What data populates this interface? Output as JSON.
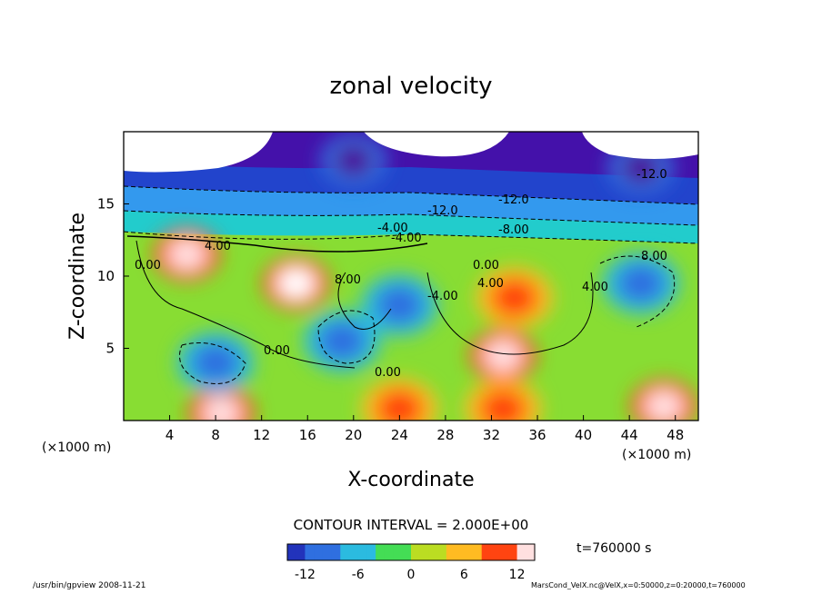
{
  "chart_data": {
    "type": "heatmap",
    "title": "zonal velocity",
    "xlabel": "X-coordinate",
    "ylabel": "Z-coordinate",
    "x_unit_label": "(×1000 m)",
    "z_unit_label": "(×1000 m)",
    "xlim": [
      0,
      50
    ],
    "ylim": [
      0,
      20
    ],
    "x_ticks": [
      4,
      8,
      12,
      16,
      20,
      24,
      28,
      32,
      36,
      40,
      44,
      48
    ],
    "y_ticks": [
      5,
      10,
      15
    ],
    "contour_interval_text": "CONTOUR INTERVAL = 2.000E+00",
    "time_text": "t=760000 s",
    "colorbar": {
      "range": [
        -14,
        14
      ],
      "ticks": [
        -12,
        -6,
        0,
        6,
        12
      ]
    },
    "contour_labels": [
      "-12.0",
      "-12.0",
      "-12.0",
      "-4.00",
      "-4.00",
      "4.00",
      "-8.00",
      "8.00",
      "-4.00",
      "0.00",
      "0.00",
      "0.00",
      "0.00",
      "4.00",
      "8.00",
      "4.00"
    ],
    "features": [
      {
        "x": 5.5,
        "z": 11.5,
        "value": 14
      },
      {
        "x": 15,
        "z": 9.5,
        "value": 15
      },
      {
        "x": 33,
        "z": 4.5,
        "value": 14
      },
      {
        "x": 34,
        "z": 8.5,
        "value": 10
      },
      {
        "x": 8.5,
        "z": 0.5,
        "value": 14
      },
      {
        "x": 47,
        "z": 1.0,
        "value": 14
      },
      {
        "x": 24,
        "z": 0.8,
        "value": 12
      },
      {
        "x": 33,
        "z": 0.8,
        "value": 12
      },
      {
        "x": 8,
        "z": 4,
        "value": -10
      },
      {
        "x": 19,
        "z": 5.5,
        "value": -10
      },
      {
        "x": 24,
        "z": 8,
        "value": -8
      },
      {
        "x": 45,
        "z": 9.5,
        "value": -10
      },
      {
        "x": 20,
        "z": 18,
        "value": -16
      },
      {
        "x": 45,
        "z": 17.5,
        "value": -16
      }
    ]
  },
  "footer": {
    "left": "/usr/bin/gpview   2008-11-21",
    "right": "MarsCond_VelX.nc@VelX,x=0:50000,z=0:20000,t=760000"
  }
}
